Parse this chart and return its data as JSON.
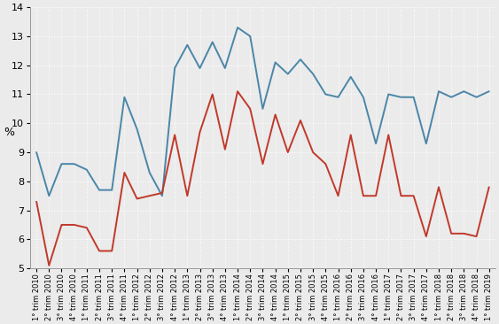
{
  "ylabel": "%",
  "ylim": [
    5,
    14
  ],
  "yticks": [
    5,
    6,
    7,
    8,
    9,
    10,
    11,
    12,
    13,
    14
  ],
  "background_color": "#ebebeb",
  "grid_color": "#ffffff",
  "italy_color": "#4a86a8",
  "tuscany_color": "#c0392b",
  "italy_vals": [
    9.0,
    7.5,
    8.6,
    8.6,
    8.4,
    7.7,
    7.7,
    10.9,
    9.8,
    8.3,
    7.5,
    11.9,
    12.7,
    11.9,
    12.8,
    11.9,
    13.3,
    13.0,
    10.5,
    12.1,
    11.7,
    12.2,
    11.7,
    11.0,
    10.9,
    11.6,
    10.9,
    9.3,
    11.0,
    10.9,
    10.9,
    9.3,
    11.1,
    10.9,
    11.1,
    10.9,
    11.1
  ],
  "tuscany_vals": [
    7.3,
    5.1,
    6.5,
    6.5,
    6.4,
    5.6,
    5.6,
    8.3,
    7.4,
    7.5,
    7.6,
    9.6,
    7.5,
    9.7,
    11.0,
    9.1,
    11.1,
    10.5,
    8.6,
    10.3,
    9.0,
    10.1,
    9.0,
    8.6,
    7.5,
    9.6,
    7.5,
    7.5,
    9.6,
    7.5,
    7.5,
    6.1,
    7.8,
    6.2,
    6.2,
    6.1,
    7.8
  ],
  "x_labels": [
    "1° trim 2010",
    "2° trim 2010",
    "3° trim 2010",
    "4° trim 2010",
    "1° trim 2011",
    "2° trim 2011",
    "3° trim 2011",
    "4° trim 2011",
    "1° trim 2012",
    "2° trim 2012",
    "3° trim 2012",
    "4° trim 2012",
    "1° trim 2013",
    "2° trim 2013",
    "3° trim 2013",
    "4° trim 2013",
    "1° trim 2014",
    "2° trim 2014",
    "3° trim 2014",
    "4° trim 2014",
    "1° trim 2015",
    "2° trim 2015",
    "3° trim 2015",
    "4° trim 2015",
    "1° trim 2016",
    "2° trim 2016",
    "3° trim 2016",
    "4° trim 2016",
    "1° trim 2017",
    "2° trim 2017",
    "3° trim 2017",
    "4° trim 2017",
    "1° trim 2018",
    "2° trim 2018",
    "3° trim 2018",
    "4° trim 2018",
    "1° trim 2019"
  ],
  "line_width": 1.4,
  "tick_labelsize": 6.0,
  "ylabel_fontsize": 9
}
